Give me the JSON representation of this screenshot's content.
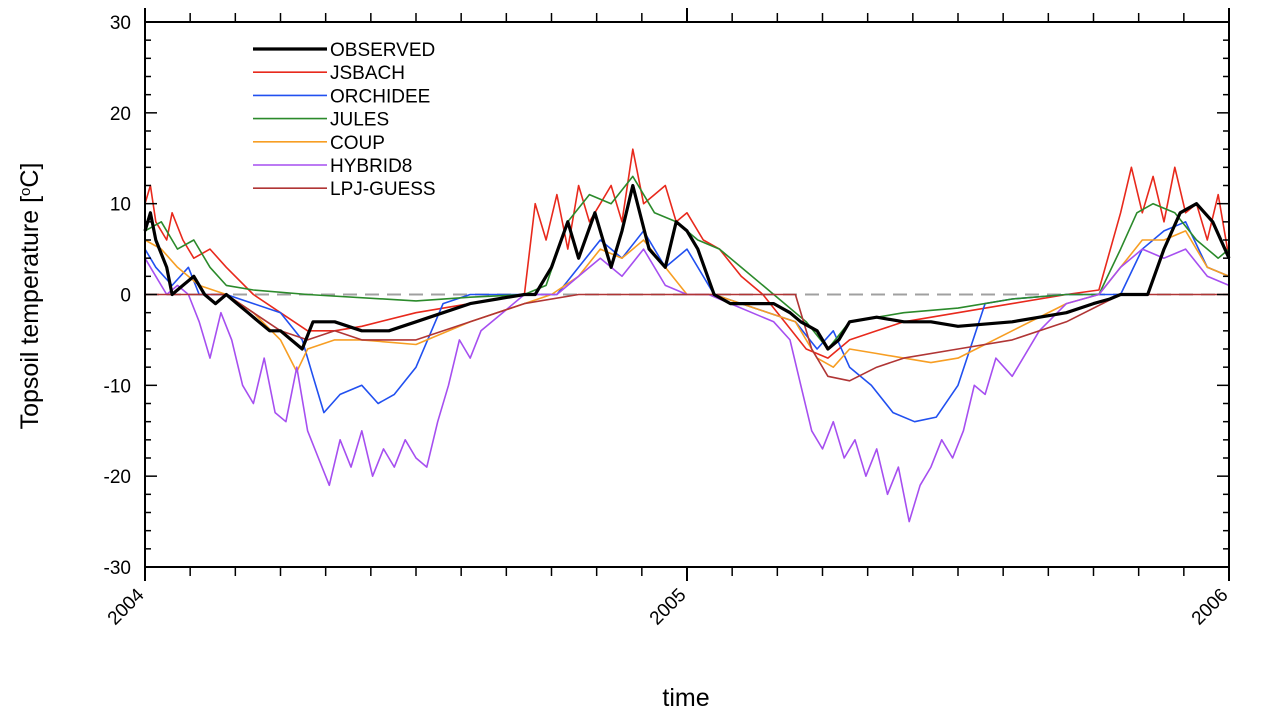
{
  "chart_data": {
    "type": "line",
    "title": "",
    "xlabel": "time",
    "ylabel": "Topsoil temperature [°C]",
    "ylabel_main": "Topsoil temperature [",
    "ylabel_degree": "o",
    "ylabel_unit": "C]",
    "xlim": [
      2004.0,
      2006.0
    ],
    "ylim": [
      -30,
      30
    ],
    "x_ticks": [
      2004,
      2005,
      2006
    ],
    "x_tick_labels": [
      "2004",
      "2005",
      "2006"
    ],
    "y_ticks": [
      -30,
      -20,
      -10,
      0,
      10,
      20,
      30
    ],
    "y_tick_labels": [
      "-30",
      "-20",
      "-10",
      "0",
      "10",
      "20",
      "30"
    ],
    "reference_line": {
      "y": 0,
      "style": "dashed",
      "color": "#a0a0a0"
    },
    "legend": {
      "placement": "top-left"
    },
    "series": [
      {
        "name": "OBSERVED",
        "color": "#000000",
        "x": [
          2004.0,
          2004.01,
          2004.02,
          2004.04,
          2004.05,
          2004.07,
          2004.09,
          2004.11,
          2004.13,
          2004.15,
          2004.17,
          2004.19,
          2004.21,
          2004.23,
          2004.25,
          2004.27,
          2004.29,
          2004.31,
          2004.33,
          2004.35,
          2004.4,
          2004.45,
          2004.5,
          2004.55,
          2004.6,
          2004.65,
          2004.7,
          2004.72,
          2004.75,
          2004.78,
          2004.8,
          2004.83,
          2004.86,
          2004.88,
          2004.9,
          2004.93,
          2004.96,
          2004.98,
          2005.0,
          2005.02,
          2005.05,
          2005.08,
          2005.12,
          2005.16,
          2005.19,
          2005.21,
          2005.24,
          2005.26,
          2005.28,
          2005.3,
          2005.35,
          2005.4,
          2005.45,
          2005.5,
          2005.6,
          2005.7,
          2005.75,
          2005.78,
          2005.8,
          2005.82,
          2005.85,
          2005.88,
          2005.91,
          2005.94,
          2005.97,
          2006.0
        ],
        "y": [
          7,
          9,
          6,
          3,
          0,
          1,
          2,
          0,
          -1,
          0,
          -1,
          -2,
          -3,
          -4,
          -4,
          -5,
          -6,
          -3,
          -3,
          -3,
          -4,
          -4,
          -3,
          -2,
          -1,
          -0.5,
          0,
          0,
          3,
          8,
          4,
          9,
          3,
          7,
          12,
          5,
          3,
          8,
          7,
          5,
          0,
          -1,
          -1,
          -1,
          -2,
          -3,
          -4,
          -6,
          -5,
          -3,
          -2.5,
          -3,
          -3,
          -3.5,
          -3,
          -2,
          -1,
          -0.5,
          0,
          0,
          0,
          5,
          9,
          10,
          8,
          4
        ]
      },
      {
        "name": "JSBACH",
        "color": "#e8291c",
        "x": [
          2004.0,
          2004.01,
          2004.02,
          2004.04,
          2004.05,
          2004.07,
          2004.09,
          2004.12,
          2004.15,
          2004.2,
          2004.25,
          2004.3,
          2004.35,
          2004.4,
          2004.5,
          2004.6,
          2004.7,
          2004.72,
          2004.74,
          2004.76,
          2004.78,
          2004.8,
          2004.82,
          2004.84,
          2004.86,
          2004.88,
          2004.9,
          2004.92,
          2004.94,
          2004.96,
          2004.98,
          2005.0,
          2005.03,
          2005.06,
          2005.1,
          2005.14,
          2005.18,
          2005.22,
          2005.26,
          2005.3,
          2005.35,
          2005.4,
          2005.5,
          2005.6,
          2005.7,
          2005.76,
          2005.8,
          2005.82,
          2005.84,
          2005.86,
          2005.88,
          2005.9,
          2005.92,
          2005.94,
          2005.96,
          2005.98,
          2006.0
        ],
        "y": [
          10,
          12,
          8,
          6,
          9,
          6,
          4,
          5,
          3,
          0,
          -2,
          -4,
          -4,
          -3.5,
          -2,
          -1,
          0,
          10,
          6,
          11,
          5,
          12,
          8,
          10,
          12,
          8,
          16,
          10,
          11,
          12,
          8,
          9,
          6,
          5,
          2,
          0,
          -3,
          -6,
          -7,
          -5,
          -4,
          -3,
          -2,
          -1,
          0,
          0.5,
          9,
          14,
          9,
          13,
          8,
          14,
          9,
          10,
          6,
          11,
          4
        ]
      },
      {
        "name": "ORCHIDEE",
        "color": "#2150f0",
        "x": [
          2004.0,
          2004.02,
          2004.05,
          2004.08,
          2004.1,
          2004.15,
          2004.2,
          2004.25,
          2004.29,
          2004.31,
          2004.33,
          2004.36,
          2004.4,
          2004.43,
          2004.46,
          2004.5,
          2004.55,
          2004.6,
          2004.7,
          2004.76,
          2004.8,
          2004.84,
          2004.88,
          2004.92,
          2004.96,
          2005.0,
          2005.05,
          2005.1,
          2005.15,
          2005.2,
          2005.24,
          2005.27,
          2005.3,
          2005.34,
          2005.38,
          2005.42,
          2005.46,
          2005.5,
          2005.55,
          2005.6,
          2005.7,
          2005.8,
          2005.84,
          2005.88,
          2005.92,
          2005.96,
          2006.0
        ],
        "y": [
          5,
          3,
          1,
          3,
          0,
          0,
          -1,
          -2,
          -5,
          -9,
          -13,
          -11,
          -10,
          -12,
          -11,
          -8,
          -1,
          0,
          0,
          0,
          3,
          6,
          4,
          7,
          3,
          5,
          0,
          -1,
          -2,
          -3,
          -6,
          -4,
          -8,
          -10,
          -13,
          -14,
          -13.5,
          -10,
          -1,
          -0.5,
          0,
          0,
          5,
          7,
          8,
          3,
          2
        ]
      },
      {
        "name": "JULES",
        "color": "#2b8a2b",
        "x": [
          2004.0,
          2004.03,
          2004.06,
          2004.09,
          2004.12,
          2004.15,
          2004.2,
          2004.3,
          2004.5,
          2004.6,
          2004.7,
          2004.74,
          2004.78,
          2004.82,
          2004.86,
          2004.9,
          2004.94,
          2004.98,
          2005.02,
          2005.06,
          2005.1,
          2005.14,
          2005.18,
          2005.22,
          2005.26,
          2005.3,
          2005.4,
          2005.5,
          2005.6,
          2005.7,
          2005.76,
          2005.8,
          2005.83,
          2005.86,
          2005.9,
          2005.94,
          2005.98,
          2006.0
        ],
        "y": [
          7,
          8,
          5,
          6,
          3,
          1,
          0.5,
          0,
          -0.7,
          -0.3,
          0,
          1,
          8,
          11,
          10,
          13,
          9,
          8,
          6,
          5,
          3,
          1,
          -1,
          -3,
          -6,
          -3,
          -2,
          -1.5,
          -0.5,
          0,
          0,
          5,
          9,
          10,
          9,
          6,
          4,
          5
        ]
      },
      {
        "name": "COUP",
        "color": "#f79e23",
        "x": [
          2004.0,
          2004.03,
          2004.06,
          2004.1,
          2004.15,
          2004.2,
          2004.25,
          2004.28,
          2004.3,
          2004.35,
          2004.4,
          2004.5,
          2004.6,
          2004.7,
          2004.75,
          2004.8,
          2004.84,
          2004.88,
          2004.92,
          2004.96,
          2005.0,
          2005.05,
          2005.1,
          2005.15,
          2005.2,
          2005.24,
          2005.27,
          2005.3,
          2005.35,
          2005.4,
          2005.45,
          2005.5,
          2005.6,
          2005.7,
          2005.76,
          2005.8,
          2005.84,
          2005.88,
          2005.92,
          2005.96,
          2006.0
        ],
        "y": [
          6,
          5,
          3,
          1,
          0,
          -2,
          -5,
          -8.5,
          -6,
          -5,
          -5,
          -5.5,
          -3,
          -1,
          0,
          2,
          5,
          4,
          6,
          3,
          0,
          0,
          -1,
          -2,
          -3,
          -7,
          -8,
          -6,
          -6.5,
          -7,
          -7.5,
          -7,
          -4,
          -1,
          0,
          3,
          6,
          6,
          7,
          3,
          2
        ]
      },
      {
        "name": "HYBRID8",
        "color": "#a64ff0",
        "x": [
          2004.0,
          2004.02,
          2004.04,
          2004.06,
          2004.08,
          2004.1,
          2004.12,
          2004.14,
          2004.16,
          2004.18,
          2004.2,
          2004.22,
          2004.24,
          2004.26,
          2004.28,
          2004.3,
          2004.32,
          2004.34,
          2004.36,
          2004.38,
          2004.4,
          2004.42,
          2004.44,
          2004.46,
          2004.48,
          2004.5,
          2004.52,
          2004.54,
          2004.56,
          2004.58,
          2004.6,
          2004.62,
          2004.66,
          2004.7,
          2004.76,
          2004.8,
          2004.84,
          2004.88,
          2004.92,
          2004.96,
          2005.0,
          2005.04,
          2005.08,
          2005.12,
          2005.16,
          2005.19,
          2005.21,
          2005.23,
          2005.25,
          2005.27,
          2005.29,
          2005.31,
          2005.33,
          2005.35,
          2005.37,
          2005.39,
          2005.41,
          2005.43,
          2005.45,
          2005.47,
          2005.49,
          2005.51,
          2005.53,
          2005.55,
          2005.57,
          2005.6,
          2005.65,
          2005.7,
          2005.76,
          2005.8,
          2005.84,
          2005.88,
          2005.92,
          2005.96,
          2006.0
        ],
        "y": [
          4,
          2,
          0,
          1,
          0,
          -3,
          -7,
          -2,
          -5,
          -10,
          -12,
          -7,
          -13,
          -14,
          -8,
          -15,
          -18,
          -21,
          -16,
          -19,
          -15,
          -20,
          -17,
          -19,
          -16,
          -18,
          -19,
          -14,
          -10,
          -5,
          -7,
          -4,
          -2,
          0,
          0,
          2,
          4,
          2,
          5,
          1,
          0,
          0,
          -1,
          -2,
          -3,
          -5,
          -10,
          -15,
          -17,
          -14,
          -18,
          -16,
          -20,
          -17,
          -22,
          -19,
          -25,
          -21,
          -19,
          -16,
          -18,
          -15,
          -10,
          -11,
          -7,
          -9,
          -4,
          -1,
          0,
          3,
          5,
          4,
          5,
          2,
          1
        ]
      },
      {
        "name": "LPJ-GUESS",
        "color": "#b03535",
        "x": [
          2004.0,
          2004.05,
          2004.1,
          2004.15,
          2004.2,
          2004.25,
          2004.3,
          2004.35,
          2004.4,
          2004.5,
          2004.6,
          2004.7,
          2004.8,
          2004.9,
          2005.0,
          2005.1,
          2005.2,
          2005.23,
          2005.26,
          2005.3,
          2005.35,
          2005.4,
          2005.5,
          2005.6,
          2005.7,
          2005.8,
          2005.9,
          2006.0
        ],
        "y": [
          0,
          0,
          0,
          0,
          -2,
          -4,
          -5,
          -4,
          -5,
          -5,
          -3,
          -1,
          0,
          0,
          0,
          0,
          0,
          -6,
          -9,
          -9.5,
          -8,
          -7,
          -6,
          -5,
          -3,
          0,
          0,
          0
        ]
      }
    ]
  }
}
